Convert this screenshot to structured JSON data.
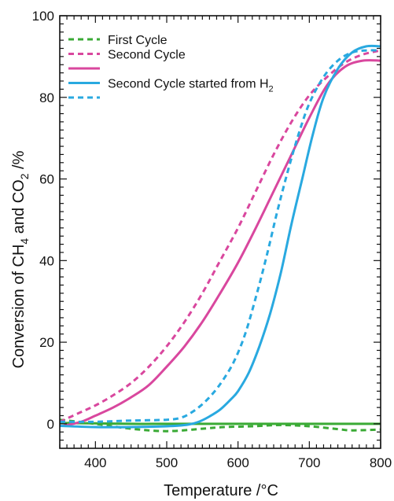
{
  "chart_data": {
    "type": "line",
    "xlabel": "Temperature /°C",
    "ylabel_parts": [
      "Conversion of CH",
      "4",
      " and CO",
      "2",
      " /%"
    ],
    "xlim": [
      350,
      800
    ],
    "ylim": [
      -6,
      100
    ],
    "x_ticks": [
      400,
      500,
      600,
      700,
      800
    ],
    "y_ticks": [
      0,
      20,
      40,
      60,
      80,
      100
    ],
    "grid": false,
    "legend_position": "top-left",
    "legend_entries": [
      {
        "label": "First Cycle",
        "subscript": "",
        "color": "#3aaa35",
        "dash": "dashed"
      },
      {
        "label": "Second Cycle",
        "subscript": "",
        "color": "#d9479e",
        "dash": "dashed"
      },
      {
        "label": "",
        "subscript": "",
        "color": "#d9479e",
        "dash": "solid"
      },
      {
        "label": "Second Cycle started from H",
        "subscript": "2",
        "color": "#29a9e0",
        "dash": "solid"
      },
      {
        "label": "",
        "subscript": "",
        "color": "#29a9e0",
        "dash": "dashed"
      }
    ],
    "series": [
      {
        "color": "#3aaa35",
        "dash": "solid",
        "x": [
          350,
          400,
          450,
          500,
          550,
          600,
          650,
          700,
          750,
          800
        ],
        "y": [
          0.2,
          0.1,
          0.0,
          0.0,
          0.0,
          0.0,
          0.0,
          0.0,
          0.0,
          0.0
        ]
      },
      {
        "color": "#3aaa35",
        "dash": "dashed",
        "x": [
          350,
          400,
          450,
          500,
          550,
          580,
          620,
          660,
          700,
          740,
          760,
          800
        ],
        "y": [
          1.0,
          0.0,
          -1.2,
          -1.8,
          -1.2,
          -0.8,
          -0.6,
          -0.3,
          -0.6,
          -1.3,
          -1.6,
          -1.4
        ]
      },
      {
        "color": "#d9479e",
        "dash": "solid",
        "x": [
          355,
          380,
          400,
          425,
          450,
          475,
          500,
          525,
          550,
          575,
          600,
          625,
          650,
          675,
          700,
          725,
          750,
          775,
          800
        ],
        "y": [
          -0.5,
          0.5,
          2,
          4,
          6.5,
          9.5,
          14,
          19,
          25,
          32,
          39.5,
          48,
          57,
          66,
          75,
          83,
          87.5,
          89,
          89
        ]
      },
      {
        "color": "#d9479e",
        "dash": "dashed",
        "x": [
          350,
          375,
          400,
          425,
          450,
          475,
          500,
          525,
          550,
          575,
          600,
          625,
          650,
          675,
          700,
          725,
          750,
          775,
          800
        ],
        "y": [
          0.5,
          2.5,
          4.5,
          7,
          10,
          14,
          19,
          25,
          32,
          40,
          48,
          57,
          66,
          74,
          80.5,
          85,
          88.5,
          90.5,
          91.5
        ]
      },
      {
        "color": "#29a9e0",
        "dash": "solid",
        "x": [
          350,
          400,
          450,
          500,
          530,
          545,
          560,
          575,
          590,
          600,
          615,
          630,
          645,
          660,
          675,
          690,
          705,
          720,
          740,
          760,
          780,
          800
        ],
        "y": [
          -0.5,
          -0.8,
          -0.8,
          -0.6,
          -0.2,
          0.5,
          1.8,
          3.5,
          6,
          8,
          12.5,
          19,
          27,
          37,
          49,
          60,
          71,
          80,
          87,
          91,
          92.5,
          92.5
        ]
      },
      {
        "color": "#29a9e0",
        "dash": "dashed",
        "x": [
          350,
          400,
          450,
          500,
          520,
          535,
          550,
          565,
          580,
          595,
          610,
          625,
          640,
          655,
          670,
          685,
          700,
          720,
          740,
          760,
          780,
          800
        ],
        "y": [
          0.5,
          0.5,
          0.8,
          1.0,
          1.5,
          2.8,
          4.8,
          7.5,
          11,
          15.5,
          22,
          31,
          41,
          52,
          62,
          71,
          78.5,
          85,
          89,
          91,
          91.5,
          91.5
        ]
      }
    ]
  }
}
